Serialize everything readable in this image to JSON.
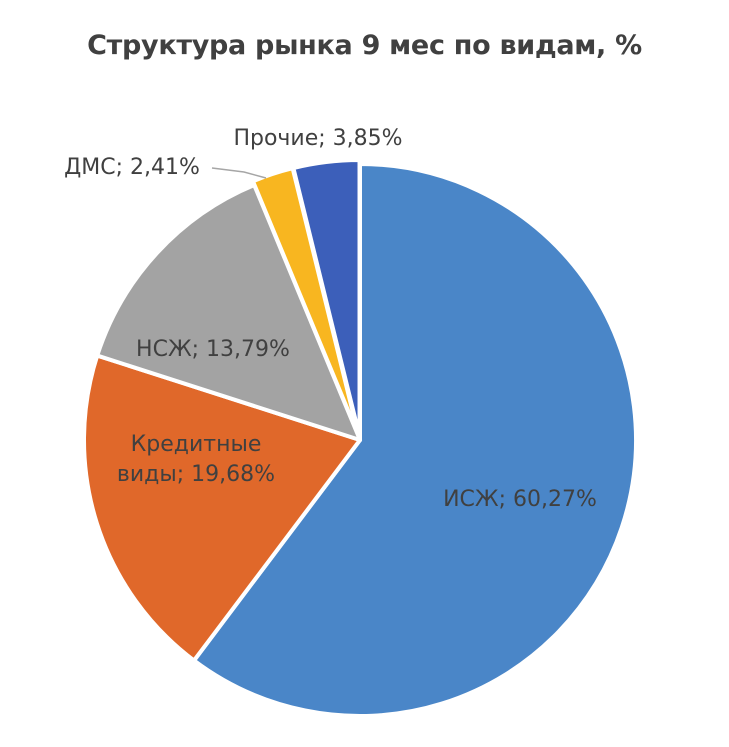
{
  "chart_data": {
    "type": "pie",
    "title": "Структура рынка 9 мес по видам, %",
    "slices": [
      {
        "name": "ИСЖ",
        "value": 60.27,
        "color": "#4a86c8",
        "label_lines": [
          "ИСЖ; 60,27%"
        ]
      },
      {
        "name": "Кредитные виды",
        "value": 19.68,
        "color": "#e0682a",
        "label_lines": [
          "Кредитные",
          "виды; 19,68%"
        ]
      },
      {
        "name": "НСЖ",
        "value": 13.79,
        "color": "#a3a3a3",
        "label_lines": [
          "НСЖ; 13,79%"
        ]
      },
      {
        "name": "ДМС",
        "value": 2.41,
        "color": "#f8b620",
        "label_lines": [
          "ДМС; 2,41%"
        ]
      },
      {
        "name": "Прочие",
        "value": 3.85,
        "color": "#3c5fba",
        "label_lines": [
          "Прочие; 3,85%"
        ]
      }
    ],
    "start": "12 o'clock",
    "direction": "clockwise",
    "legend": "none"
  }
}
